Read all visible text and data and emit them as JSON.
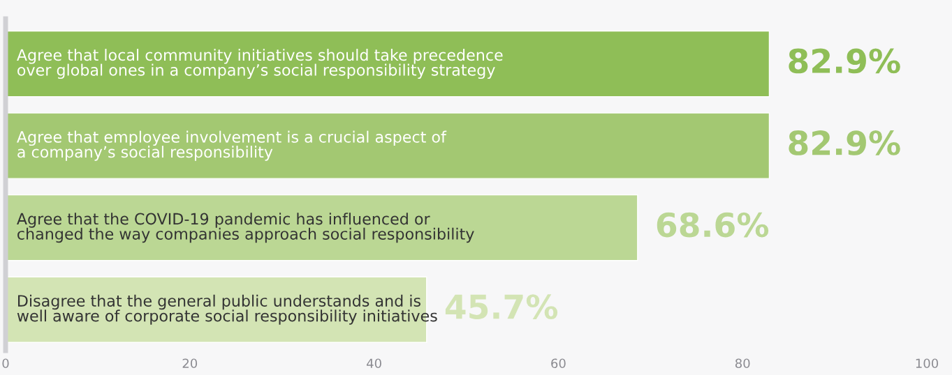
{
  "chart_data": {
    "type": "bar",
    "orientation": "horizontal",
    "categories": [
      "Agree that local community initiatives should take precedence\nover global ones in a company’s social responsibility strategy",
      "Agree that employee involvement is a crucial aspect of\na company’s social responsibility",
      "Agree that the COVID-19 pandemic has influenced or\nchanged the way companies approach social responsibility",
      "Disagree that the general public understands and is\nwell aware of corporate social responsibility initiatives"
    ],
    "values": [
      82.9,
      82.9,
      68.6,
      45.7
    ],
    "value_labels": [
      "82.9%",
      "82.9%",
      "68.6%",
      "45.7%"
    ],
    "colors": [
      "#8fbe57",
      "#a3c872",
      "#bbd794",
      "#d3e4b4"
    ],
    "xlim": [
      0,
      100
    ],
    "xticks": [
      0,
      20,
      40,
      60,
      80,
      100
    ],
    "grid": false
  }
}
